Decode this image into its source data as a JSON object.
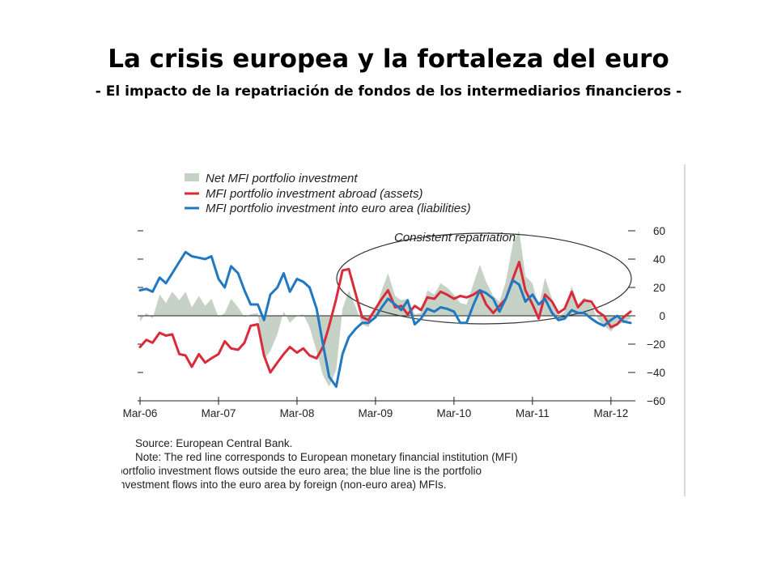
{
  "slide": {
    "title": "La crisis europea y la fortaleza del euro",
    "subtitle": "- El impacto de la repatriación de fondos de los intermediarios financieros -"
  },
  "chart_data": {
    "type": "line",
    "legend": {
      "placement": "top-left",
      "items": [
        {
          "label": "Net MFI portfolio investment",
          "style": "area",
          "color": "#c5d2c5"
        },
        {
          "label": "MFI portfolio investment abroad (assets)",
          "style": "line",
          "color": "#d92b3a"
        },
        {
          "label": "MFI portfolio investment into euro area (liabilities)",
          "style": "line",
          "color": "#1f78c1"
        }
      ]
    },
    "annotation": "Consistent repatriation",
    "x_ticks": [
      "Mar-06",
      "Mar-07",
      "Mar-08",
      "Mar-09",
      "Mar-10",
      "Mar-11",
      "Mar-12"
    ],
    "x_range": [
      2006.17,
      2012.45
    ],
    "ylim": [
      -60,
      70
    ],
    "y_ticks_right": [
      "60",
      "40",
      "20",
      "0",
      "−20",
      "−40",
      "−60"
    ],
    "y_tick_values": [
      60,
      40,
      20,
      0,
      -20,
      -40,
      -60
    ],
    "grid": false,
    "series": [
      {
        "name": "MFI portfolio investment abroad (assets)",
        "color": "#d92b3a",
        "points": [
          [
            2006.17,
            -22
          ],
          [
            2006.25,
            -17
          ],
          [
            2006.33,
            -19
          ],
          [
            2006.42,
            -12
          ],
          [
            2006.5,
            -14
          ],
          [
            2006.58,
            -13
          ],
          [
            2006.67,
            -27
          ],
          [
            2006.75,
            -28
          ],
          [
            2006.83,
            -36
          ],
          [
            2006.92,
            -27
          ],
          [
            2007.0,
            -33
          ],
          [
            2007.08,
            -30
          ],
          [
            2007.17,
            -27
          ],
          [
            2007.25,
            -18
          ],
          [
            2007.33,
            -23
          ],
          [
            2007.42,
            -24
          ],
          [
            2007.5,
            -19
          ],
          [
            2007.58,
            -7
          ],
          [
            2007.67,
            -6
          ],
          [
            2007.75,
            -28
          ],
          [
            2007.83,
            -40
          ],
          [
            2007.92,
            -33
          ],
          [
            2008.0,
            -27
          ],
          [
            2008.08,
            -22
          ],
          [
            2008.17,
            -26
          ],
          [
            2008.25,
            -23
          ],
          [
            2008.33,
            -28
          ],
          [
            2008.42,
            -30
          ],
          [
            2008.5,
            -22
          ],
          [
            2008.58,
            -7
          ],
          [
            2008.67,
            12
          ],
          [
            2008.75,
            32
          ],
          [
            2008.83,
            33
          ],
          [
            2008.92,
            15
          ],
          [
            2009.0,
            -1
          ],
          [
            2009.08,
            -3
          ],
          [
            2009.17,
            5
          ],
          [
            2009.25,
            12
          ],
          [
            2009.33,
            18
          ],
          [
            2009.42,
            6
          ],
          [
            2009.5,
            7
          ],
          [
            2009.58,
            1
          ],
          [
            2009.67,
            7
          ],
          [
            2009.75,
            4
          ],
          [
            2009.83,
            13
          ],
          [
            2009.92,
            12
          ],
          [
            2010.0,
            17
          ],
          [
            2010.08,
            15
          ],
          [
            2010.17,
            12
          ],
          [
            2010.25,
            14
          ],
          [
            2010.33,
            13
          ],
          [
            2010.42,
            15
          ],
          [
            2010.5,
            18
          ],
          [
            2010.58,
            8
          ],
          [
            2010.67,
            2
          ],
          [
            2010.75,
            7
          ],
          [
            2010.83,
            12
          ],
          [
            2010.92,
            26
          ],
          [
            2011.0,
            38
          ],
          [
            2011.08,
            18
          ],
          [
            2011.17,
            8
          ],
          [
            2011.25,
            -2
          ],
          [
            2011.33,
            15
          ],
          [
            2011.42,
            10
          ],
          [
            2011.5,
            2
          ],
          [
            2011.58,
            5
          ],
          [
            2011.67,
            17
          ],
          [
            2011.75,
            6
          ],
          [
            2011.83,
            11
          ],
          [
            2011.92,
            10
          ],
          [
            2012.0,
            3
          ],
          [
            2012.08,
            0
          ],
          [
            2012.17,
            -8
          ],
          [
            2012.25,
            -6
          ],
          [
            2012.33,
            -1
          ],
          [
            2012.42,
            3
          ]
        ]
      },
      {
        "name": "MFI portfolio investment into euro area (liabilities)",
        "color": "#1f78c1",
        "points": [
          [
            2006.17,
            18
          ],
          [
            2006.25,
            19
          ],
          [
            2006.33,
            17
          ],
          [
            2006.42,
            27
          ],
          [
            2006.5,
            23
          ],
          [
            2006.58,
            30
          ],
          [
            2006.67,
            38
          ],
          [
            2006.75,
            45
          ],
          [
            2006.83,
            42
          ],
          [
            2006.92,
            41
          ],
          [
            2007.0,
            40
          ],
          [
            2007.08,
            42
          ],
          [
            2007.17,
            26
          ],
          [
            2007.25,
            20
          ],
          [
            2007.33,
            35
          ],
          [
            2007.42,
            30
          ],
          [
            2007.5,
            18
          ],
          [
            2007.58,
            8
          ],
          [
            2007.67,
            8
          ],
          [
            2007.75,
            -3
          ],
          [
            2007.83,
            15
          ],
          [
            2007.92,
            20
          ],
          [
            2008.0,
            30
          ],
          [
            2008.08,
            17
          ],
          [
            2008.17,
            26
          ],
          [
            2008.25,
            24
          ],
          [
            2008.33,
            20
          ],
          [
            2008.42,
            5
          ],
          [
            2008.5,
            -20
          ],
          [
            2008.58,
            -43
          ],
          [
            2008.67,
            -50
          ],
          [
            2008.75,
            -27
          ],
          [
            2008.83,
            -15
          ],
          [
            2008.92,
            -9
          ],
          [
            2009.0,
            -5
          ],
          [
            2009.08,
            -5
          ],
          [
            2009.17,
            -1
          ],
          [
            2009.25,
            6
          ],
          [
            2009.33,
            12
          ],
          [
            2009.42,
            8
          ],
          [
            2009.5,
            4
          ],
          [
            2009.58,
            11
          ],
          [
            2009.67,
            -6
          ],
          [
            2009.75,
            -2
          ],
          [
            2009.83,
            5
          ],
          [
            2009.92,
            3
          ],
          [
            2010.0,
            6
          ],
          [
            2010.08,
            5
          ],
          [
            2010.17,
            3
          ],
          [
            2010.25,
            -5
          ],
          [
            2010.33,
            -5
          ],
          [
            2010.42,
            8
          ],
          [
            2010.5,
            18
          ],
          [
            2010.58,
            16
          ],
          [
            2010.67,
            12
          ],
          [
            2010.75,
            3
          ],
          [
            2010.83,
            12
          ],
          [
            2010.92,
            25
          ],
          [
            2011.0,
            22
          ],
          [
            2011.08,
            10
          ],
          [
            2011.17,
            15
          ],
          [
            2011.25,
            8
          ],
          [
            2011.33,
            12
          ],
          [
            2011.42,
            2
          ],
          [
            2011.5,
            -3
          ],
          [
            2011.58,
            -2
          ],
          [
            2011.67,
            4
          ],
          [
            2011.75,
            2
          ],
          [
            2011.83,
            2
          ],
          [
            2011.92,
            -2
          ],
          [
            2012.0,
            -5
          ],
          [
            2012.08,
            -7
          ],
          [
            2012.17,
            -3
          ],
          [
            2012.25,
            0
          ],
          [
            2012.33,
            -4
          ],
          [
            2012.42,
            -5
          ]
        ]
      }
    ],
    "source": "Source: European Central Bank.",
    "note_lines": [
      "Note: The red line corresponds to European monetary financial institution (MFI)",
      "portfolio investment flows outside the euro area; the blue line is the portfolio",
      "investment flows into the euro area by foreign (non-euro area) MFIs."
    ]
  }
}
